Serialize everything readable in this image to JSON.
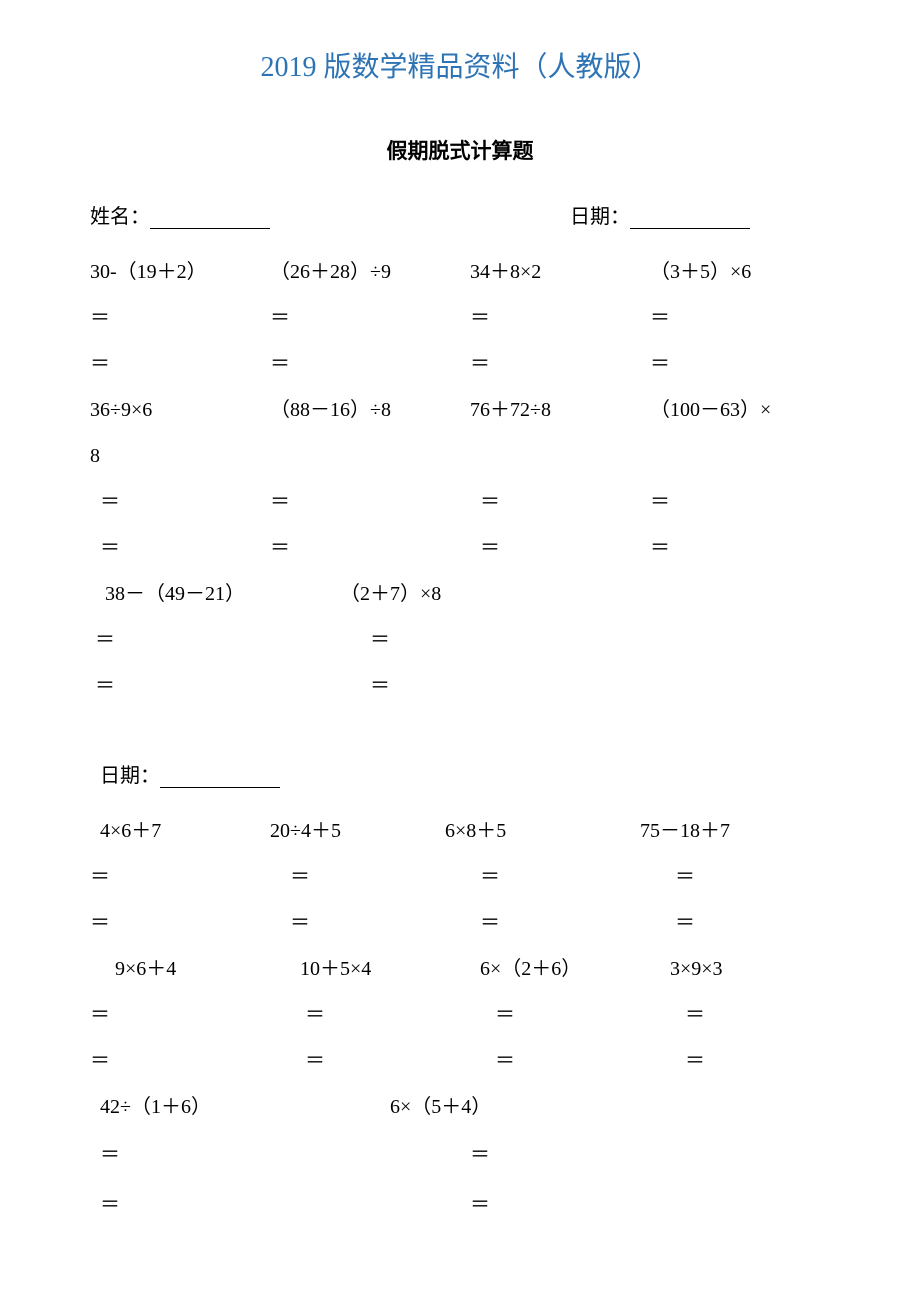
{
  "header": "2019 版数学精品资料（人教版）",
  "subtitle": "假期脱式计算题",
  "labels": {
    "name": "姓名：",
    "date": "日期：",
    "eq": "＝"
  },
  "section1": {
    "row1": [
      "30-（19＋2）",
      "（26＋28）÷9",
      "34＋8×2",
      "（3＋5）×6"
    ],
    "row2": [
      "36÷9×6",
      "（88－16）÷8",
      "76＋72÷8",
      "（100－63）×"
    ],
    "row2_wrap": "8",
    "row3": [
      "38－（49－21）",
      "（2＋7）×8"
    ]
  },
  "section2": {
    "row1": [
      "4×6＋7",
      "20÷4＋5",
      "6×8＋5",
      "75－18＋7"
    ],
    "row2": [
      "9×6＋4",
      "10＋5×4",
      "6×（2＋6）",
      "3×9×3"
    ],
    "row3": [
      "42÷（1＋6）",
      "6×（5＋4）"
    ]
  },
  "colors": {
    "header": "#2e74b5",
    "text": "#000000",
    "background": "#ffffff"
  },
  "typography": {
    "header_fontsize": 28,
    "body_fontsize": 20,
    "subtitle_fontsize": 21,
    "font_family": "SimSun"
  }
}
